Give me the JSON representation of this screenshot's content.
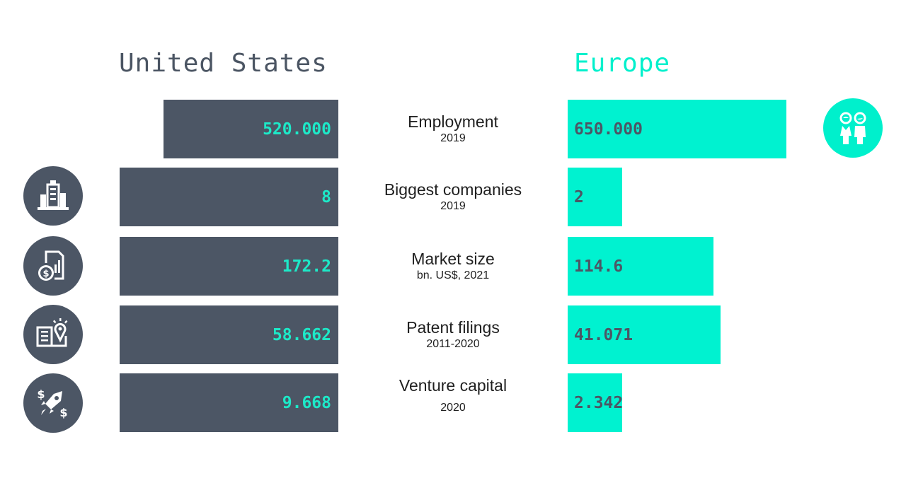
{
  "chart_data": {
    "type": "bar",
    "orientation": "horizontal-butterfly",
    "categories": [
      "Employment",
      "Biggest companies",
      "Market size",
      "Patent filings",
      "Venture capital"
    ],
    "subtitles": [
      "2019",
      "2019",
      "bn. US$, 2021",
      "2011-2020",
      "2020"
    ],
    "series": [
      {
        "name": "United States",
        "values": [
          520000,
          8,
          172.2,
          58662,
          9668
        ],
        "labels": [
          "520.000",
          "8",
          "172.2",
          "58.662",
          "9.668"
        ],
        "color": "#4c5665",
        "label_color": "#1de9c8"
      },
      {
        "name": "Europe",
        "values": [
          650000,
          2,
          114.6,
          41071,
          2342
        ],
        "labels": [
          "650.000",
          "2",
          "114.6",
          "41.071",
          "2.342"
        ],
        "color": "#00f2d0",
        "label_color": "#4c5665"
      }
    ],
    "title": "",
    "xlabel": "",
    "ylabel": ""
  },
  "headers": {
    "us": "United States",
    "eu": "Europe"
  },
  "icons": {
    "employment": "people-icon",
    "companies": "buildings-icon",
    "market": "money-chart-icon",
    "patents": "book-idea-icon",
    "venture": "rocket-money-icon"
  },
  "colors": {
    "us": "#4c5665",
    "eu": "#00f2d0",
    "text": "#1f1f1f"
  }
}
